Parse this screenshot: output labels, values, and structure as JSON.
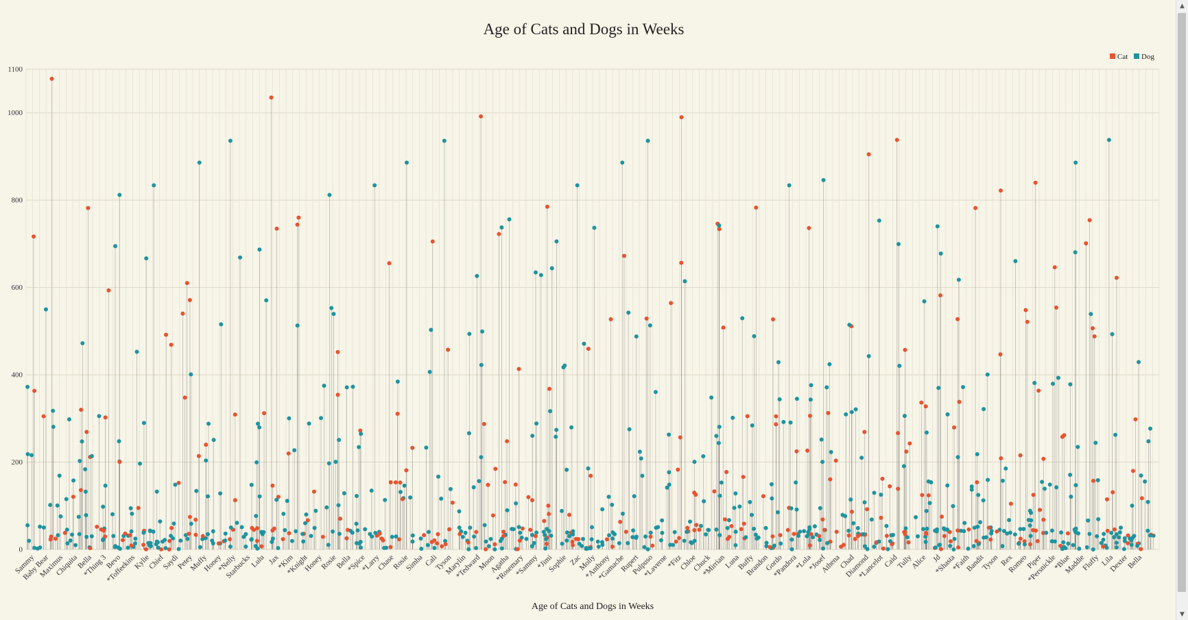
{
  "chart_data": {
    "type": "scatter",
    "title": "Age of Cats and Dogs in Weeks",
    "xlabel": "Age of Cats and Dogs in Weeks",
    "ylabel": "",
    "ylim": [
      0,
      1100
    ],
    "yticks": [
      0,
      200,
      400,
      600,
      800,
      1000,
      1100
    ],
    "grid": true,
    "legend_position": "top-right",
    "series": [
      {
        "name": "Cat",
        "color": "#e8532f"
      },
      {
        "name": "Dog",
        "color": "#1e94a0"
      }
    ],
    "x_tick_labels": [
      "Sammy",
      "Baby Bear",
      "Maximus",
      "Chiquita",
      "Bella",
      "*Thing 3",
      "Bevo",
      "*Toffeekins",
      "Kylie",
      "Chief",
      "Saydi",
      "Petey",
      "Muffy",
      "Honey",
      "*Nelly",
      "Starbucks",
      "Lulu",
      "Jax",
      "*Kim",
      "*Knight",
      "Honey",
      "Rosie",
      "Bella",
      "*Spice",
      "*Larry",
      "Chase",
      "Rosie",
      "Simba",
      "Cali",
      "Tyson",
      "Marylin",
      "*Tedward",
      "Moon",
      "Agatha",
      "*Rosemary",
      "*Sammy",
      "*Jimi",
      "Sophie",
      "Zac",
      "Molly",
      "*Anthony",
      "*Gamache",
      "Rupert",
      "Pulpuso",
      "*Laverne",
      "*Fitz",
      "Chloe",
      "Chuck",
      "*Mirrian",
      "Luna",
      "Buffy",
      "Brandon",
      "Gordo",
      "*Pandora",
      "*Lola",
      "*Josef",
      "Athena",
      "Chad",
      "Diamond",
      "*Lancelot",
      "Caid",
      "Tully",
      "Alice",
      "Jd",
      "*Shasta",
      "*Faith",
      "Bandit",
      "Tyson",
      "Rex",
      "Romeo",
      "Piper",
      "*Persnickle",
      "*Blue",
      "Maddie",
      "Fluffy",
      "Lila",
      "Dexter",
      "Bella"
    ],
    "notable_points": [
      {
        "series": "Cat",
        "y": 1078
      },
      {
        "series": "Cat",
        "y": 1035
      },
      {
        "series": "Cat",
        "y": 992
      },
      {
        "series": "Cat",
        "y": 990
      },
      {
        "series": "Cat",
        "y": 938
      },
      {
        "series": "Dog",
        "y": 938
      },
      {
        "series": "Dog",
        "y": 936
      },
      {
        "series": "Dog",
        "y": 936
      },
      {
        "series": "Dog",
        "y": 936
      },
      {
        "series": "Cat",
        "y": 905
      },
      {
        "series": "Dog",
        "y": 886
      },
      {
        "series": "Dog",
        "y": 886
      },
      {
        "series": "Dog",
        "y": 886
      },
      {
        "series": "Dog",
        "y": 886
      },
      {
        "series": "Dog",
        "y": 846
      },
      {
        "series": "Cat",
        "y": 840
      },
      {
        "series": "Dog",
        "y": 834
      },
      {
        "series": "Dog",
        "y": 834
      },
      {
        "series": "Dog",
        "y": 834
      },
      {
        "series": "Dog",
        "y": 834
      },
      {
        "series": "Cat",
        "y": 822
      },
      {
        "series": "Dog",
        "y": 812
      },
      {
        "series": "Dog",
        "y": 812
      },
      {
        "series": "Cat",
        "y": 785
      },
      {
        "series": "Cat",
        "y": 783
      },
      {
        "series": "Cat",
        "y": 782
      },
      {
        "series": "Cat",
        "y": 782
      },
      {
        "series": "Cat",
        "y": 760
      },
      {
        "series": "Dog",
        "y": 756
      },
      {
        "series": "Dog",
        "y": 742
      },
      {
        "series": "Dog",
        "y": 740
      }
    ]
  }
}
